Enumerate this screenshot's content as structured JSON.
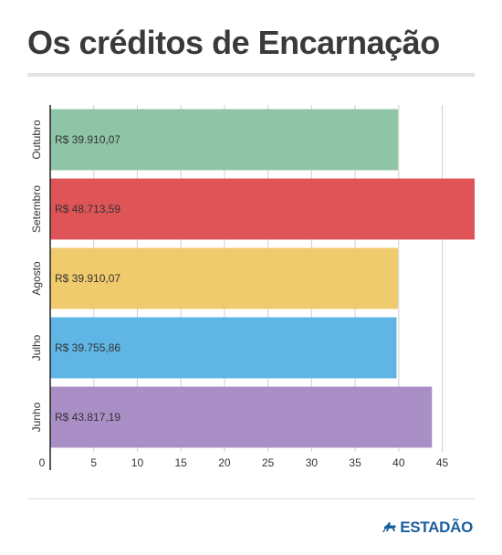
{
  "title": "Os créditos de Encarnação",
  "brand": {
    "name": "ESTADÃO",
    "icon": "horse-rider-icon",
    "color": "#1a5f9e"
  },
  "chart_data": {
    "type": "bar",
    "orientation": "horizontal",
    "title": "Os créditos de Encarnação",
    "categories": [
      "Outubro",
      "Setembro",
      "Agosto",
      "Julho",
      "Junho"
    ],
    "values": [
      39.91007,
      48.71359,
      39.91007,
      39.75586,
      43.81719
    ],
    "value_labels": [
      "R$ 39.910,07",
      "R$ 48.713,59",
      "R$ 39.910,07",
      "R$ 39.755,86",
      "R$ 43.817,19"
    ],
    "colors": [
      "#8fc4a6",
      "#de5457",
      "#efcb6d",
      "#5fb6e5",
      "#aa8fc7"
    ],
    "xticks": [
      "0",
      "5",
      "10",
      "15",
      "20",
      "25",
      "30",
      "35",
      "40",
      "45"
    ],
    "xlim": [
      0,
      48.71359
    ],
    "grid": true,
    "xlabel": "",
    "ylabel": ""
  }
}
